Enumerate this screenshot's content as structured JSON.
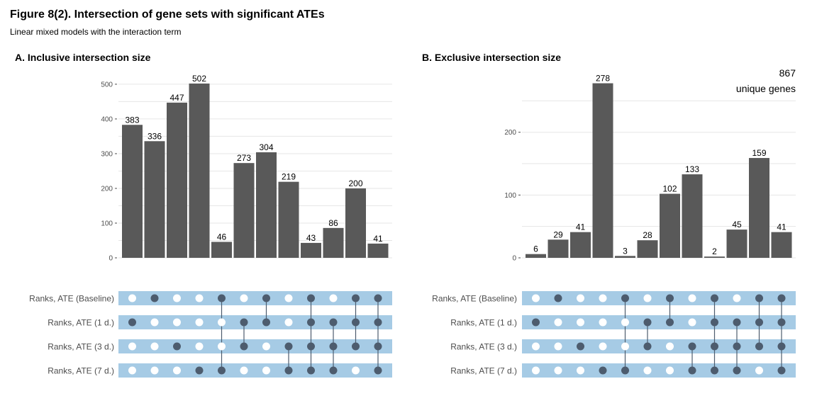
{
  "title": "Figure 8(2). Intersection of gene sets with significant ATEs",
  "subtitle": "Linear mixed models with the interaction term",
  "colors": {
    "bar": "#595959",
    "matrix_band": "#a6cbe5",
    "dot_on": "#4d5c6e",
    "dot_off": "#ffffff",
    "grid": "#e6e6e6",
    "text": "#000000",
    "axis_text": "#4d4d4d"
  },
  "chart_data": [
    {
      "type": "bar",
      "title": "A. Inclusive intersection size",
      "ylim": [
        0,
        510
      ],
      "yticks": [
        0,
        100,
        200,
        300,
        400,
        500
      ],
      "values": [
        383,
        336,
        447,
        502,
        46,
        273,
        304,
        219,
        43,
        86,
        200,
        41
      ],
      "sets": [
        "Ranks, ATE (Baseline)",
        "Ranks, ATE (1 d.)",
        "Ranks, ATE (3 d.)",
        "Ranks, ATE (7 d.)"
      ],
      "membership": [
        [
          0,
          1,
          0,
          0
        ],
        [
          1,
          0,
          0,
          0
        ],
        [
          0,
          0,
          1,
          0
        ],
        [
          0,
          0,
          0,
          1
        ],
        [
          1,
          0,
          0,
          1
        ],
        [
          0,
          1,
          1,
          0
        ],
        [
          1,
          1,
          0,
          0
        ],
        [
          0,
          0,
          1,
          1
        ],
        [
          1,
          1,
          1,
          1
        ],
        [
          0,
          1,
          1,
          1
        ],
        [
          1,
          1,
          1,
          0
        ],
        [
          1,
          1,
          1,
          1
        ]
      ]
    },
    {
      "type": "bar",
      "title": "B. Exclusive intersection size",
      "ylim": [
        0,
        282
      ],
      "yticks": [
        0,
        100,
        200
      ],
      "values": [
        6,
        29,
        41,
        278,
        3,
        28,
        102,
        133,
        2,
        45,
        159,
        41
      ],
      "annotation": {
        "value": "867",
        "label": "unique genes"
      },
      "sets": [
        "Ranks, ATE (Baseline)",
        "Ranks, ATE (1 d.)",
        "Ranks, ATE (3 d.)",
        "Ranks, ATE (7 d.)"
      ],
      "membership": [
        [
          0,
          1,
          0,
          0
        ],
        [
          1,
          0,
          0,
          0
        ],
        [
          0,
          0,
          1,
          0
        ],
        [
          0,
          0,
          0,
          1
        ],
        [
          1,
          0,
          0,
          1
        ],
        [
          0,
          1,
          1,
          0
        ],
        [
          1,
          1,
          0,
          0
        ],
        [
          0,
          0,
          1,
          1
        ],
        [
          1,
          1,
          1,
          1
        ],
        [
          0,
          1,
          1,
          1
        ],
        [
          1,
          1,
          1,
          0
        ],
        [
          1,
          1,
          1,
          1
        ]
      ]
    }
  ]
}
